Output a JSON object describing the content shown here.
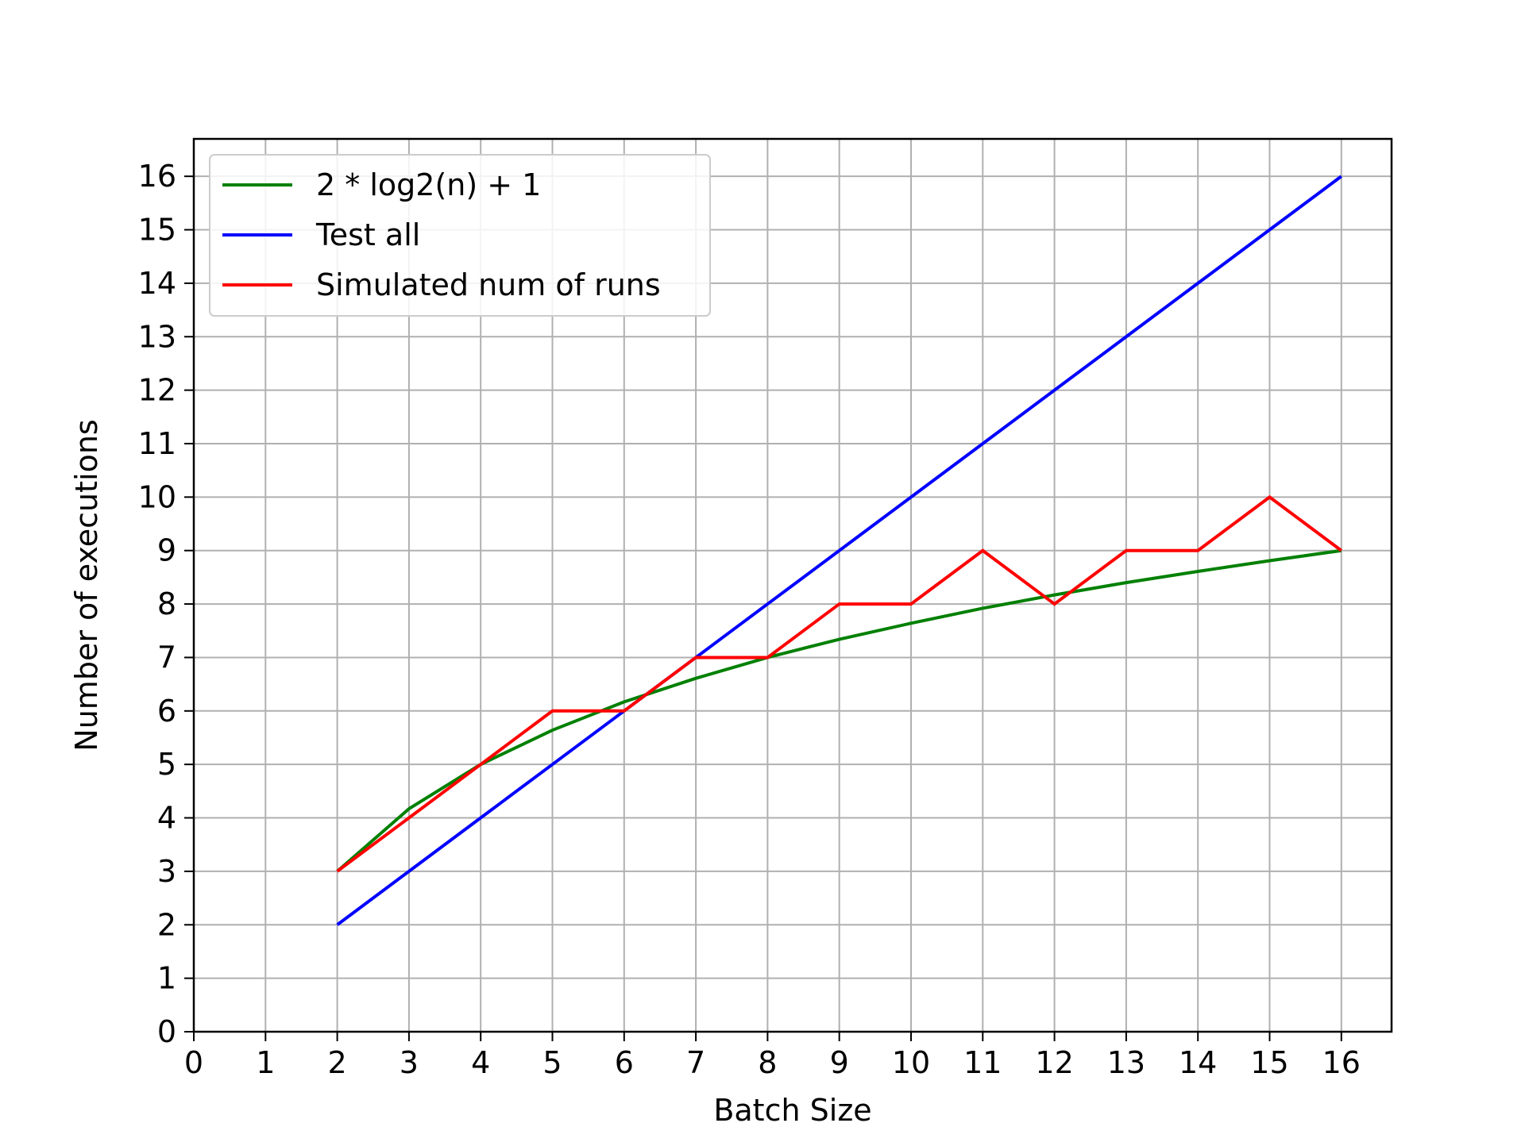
{
  "chart_data": {
    "type": "line",
    "title": "",
    "xlabel": "Batch Size",
    "ylabel": "Number of executions",
    "xlim": [
      0,
      16.7
    ],
    "ylim": [
      0,
      16.7
    ],
    "xticks": [
      "0",
      "1",
      "2",
      "3",
      "4",
      "5",
      "6",
      "7",
      "8",
      "9",
      "10",
      "11",
      "12",
      "13",
      "14",
      "15",
      "16"
    ],
    "yticks": [
      "0",
      "1",
      "2",
      "3",
      "4",
      "5",
      "6",
      "7",
      "8",
      "9",
      "10",
      "11",
      "12",
      "13",
      "14",
      "15",
      "16"
    ],
    "grid": true,
    "legend_position": "top-left",
    "x": [
      2,
      3,
      4,
      5,
      6,
      7,
      8,
      9,
      10,
      11,
      12,
      13,
      14,
      15,
      16
    ],
    "series": [
      {
        "name": "2 * log2(n) + 1",
        "color": "#008000",
        "values": [
          3,
          4.17,
          5,
          5.64,
          6.17,
          6.61,
          7,
          7.34,
          7.64,
          7.92,
          8.17,
          8.4,
          8.61,
          8.81,
          9
        ]
      },
      {
        "name": "Test all",
        "color": "#0000ff",
        "values": [
          2,
          3,
          4,
          5,
          6,
          7,
          8,
          9,
          10,
          11,
          12,
          13,
          14,
          15,
          16
        ]
      },
      {
        "name": "Simulated num of runs",
        "color": "#ff0000",
        "values": [
          3,
          4,
          5,
          6,
          6,
          7,
          7,
          8,
          8,
          9,
          8,
          9,
          9,
          10,
          9
        ]
      }
    ]
  }
}
